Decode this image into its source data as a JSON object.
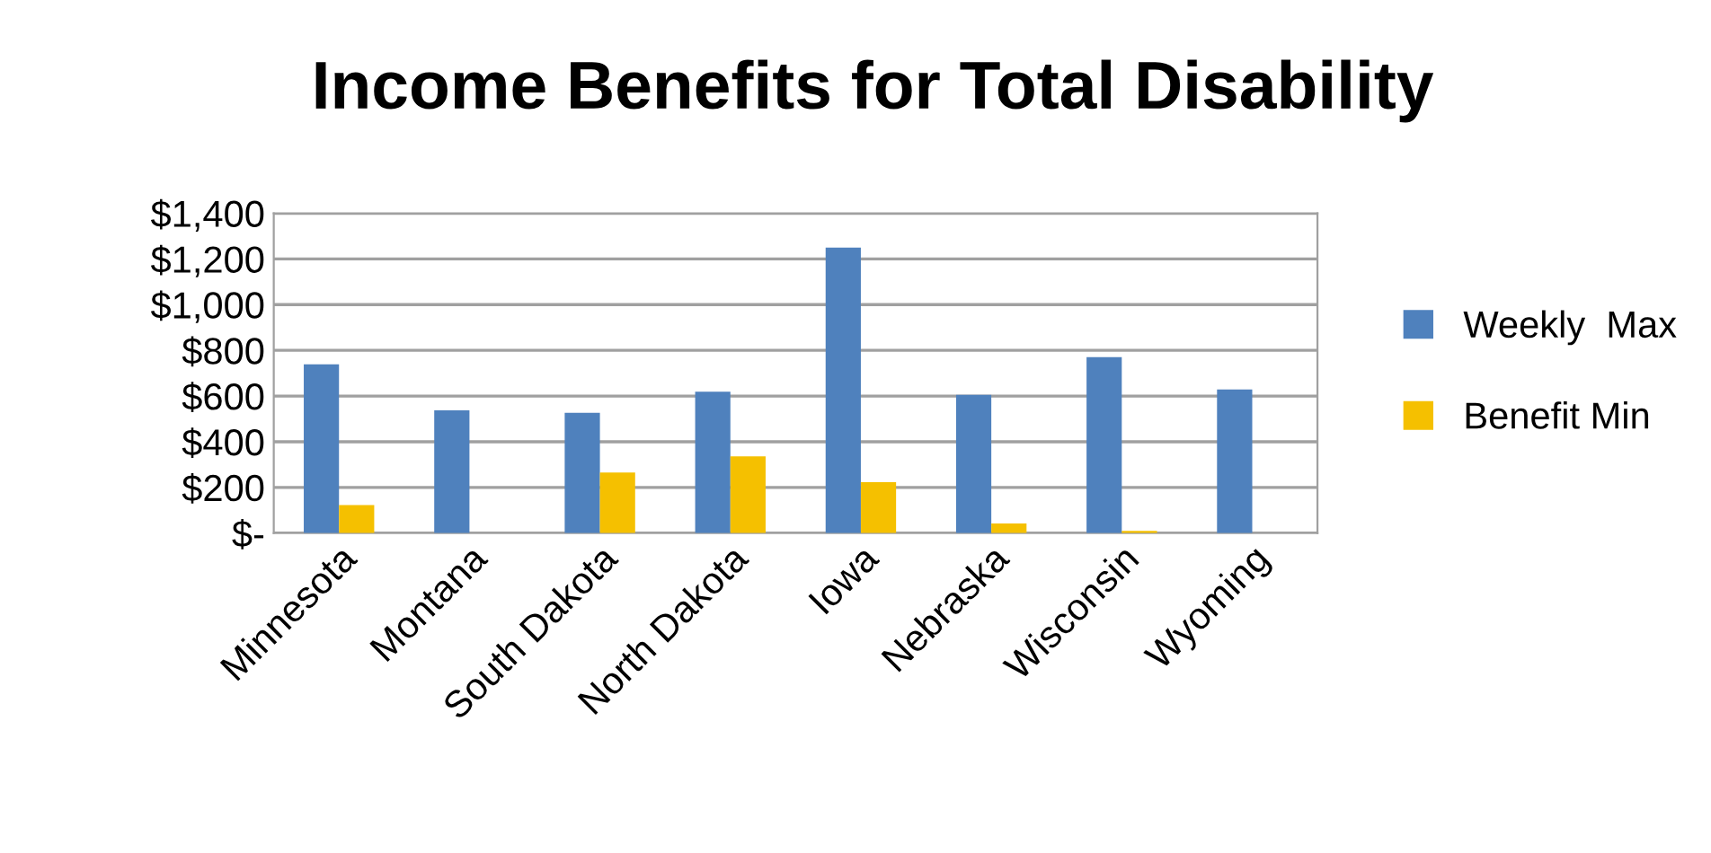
{
  "chart_data": {
    "type": "bar",
    "title": "Income Benefits for Total Disability",
    "categories": [
      "Minnesota",
      "Montana",
      "South Dakota",
      "North Dakota",
      "Iowa",
      "Nebraska",
      "Wisconsin",
      "Wyoming"
    ],
    "series": [
      {
        "name": "Weekly  Max",
        "color": "#4f81bd",
        "values": [
          739,
          537,
          527,
          619,
          1250,
          605,
          770,
          629
        ]
      },
      {
        "name": "Benefit Min",
        "color": "#f5c000",
        "values": [
          123,
          null,
          265,
          336,
          223,
          42,
          10,
          null
        ]
      }
    ],
    "ylim": [
      0,
      1400
    ],
    "yticks": [
      {
        "value": 0,
        "label": "$-"
      },
      {
        "value": 200,
        "label": "$200"
      },
      {
        "value": 400,
        "label": "$400"
      },
      {
        "value": 600,
        "label": "$600"
      },
      {
        "value": 800,
        "label": "$800"
      },
      {
        "value": 1000,
        "label": "$1,000"
      },
      {
        "value": 1200,
        "label": "$1,200"
      },
      {
        "value": 1400,
        "label": "$1,400"
      }
    ],
    "grid": "y",
    "legend": "right"
  }
}
